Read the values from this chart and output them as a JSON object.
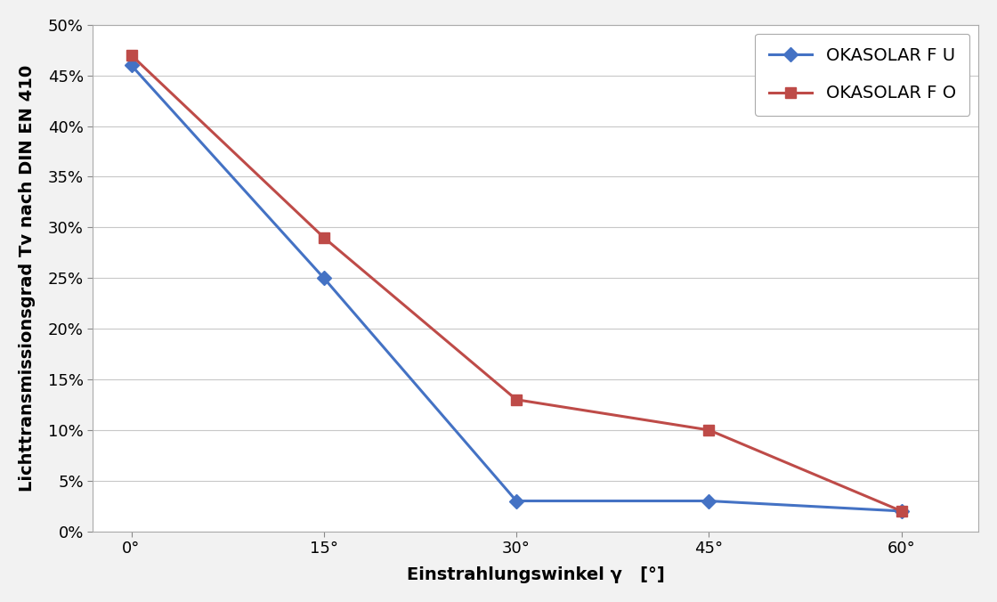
{
  "x_values": [
    0,
    15,
    30,
    45,
    60
  ],
  "series_FU": [
    0.46,
    0.25,
    0.03,
    0.03,
    0.02
  ],
  "series_FO": [
    0.47,
    0.29,
    0.13,
    0.1,
    0.02
  ],
  "color_FU": "#4472C4",
  "color_FO": "#BE4B48",
  "label_FU": "OKASOLAR F U",
  "label_FO": "OKASOLAR F O",
  "xlabel": "Einstrahlungswinkel γ   [°]",
  "ylabel": "Lichttransmissionsgrad Tv nach DIN EN 410",
  "ylim": [
    0.0,
    0.5
  ],
  "yticks": [
    0.0,
    0.05,
    0.1,
    0.15,
    0.2,
    0.25,
    0.3,
    0.35,
    0.4,
    0.45,
    0.5
  ],
  "xtick_labels": [
    "0°",
    "15°",
    "30°",
    "45°",
    "60°"
  ],
  "background_color": "#F2F2F2",
  "plot_bg_color": "#FFFFFF",
  "grid_color": "#C8C8C8",
  "marker_FU": "D",
  "marker_FO": "s",
  "marker_size": 8,
  "line_width": 2.2,
  "axis_label_fontsize": 14,
  "tick_fontsize": 13,
  "legend_fontsize": 14
}
